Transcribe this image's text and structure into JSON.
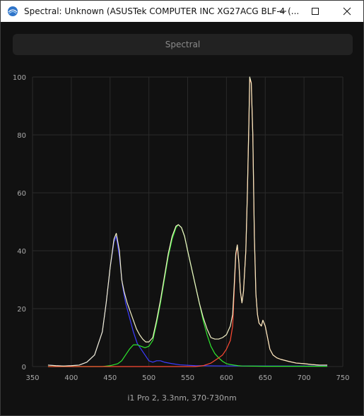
{
  "window": {
    "title": "Spectral: Unknown (ASUSTek COMPUTER INC XG27ACG BLF-4 (...",
    "controls": {
      "minimize_icon": "minimize-icon",
      "maximize_icon": "maximize-icon",
      "close_icon": "close-icon"
    }
  },
  "mode_button": {
    "label": "Spectral"
  },
  "footer": {
    "caption": "i1 Pro 2, 3.3nm, 370-730nm"
  },
  "colors": {
    "background": "#111111",
    "grid": "#2a2a2a",
    "white_curve": "#f3f0c7",
    "blue_curve": "#3c3cff",
    "green_curve": "#2ee82e",
    "red_curve": "#ff4a33"
  },
  "chart_data": {
    "type": "line",
    "xlim": [
      350,
      750
    ],
    "ylim": [
      0,
      100
    ],
    "x_ticks": [
      350,
      400,
      450,
      500,
      550,
      600,
      650,
      700,
      750
    ],
    "y_ticks": [
      0,
      20,
      40,
      60,
      80,
      100
    ],
    "grid": true,
    "legend": "none",
    "series": [
      {
        "color": "#3c3cff",
        "points": [
          [
            370,
            0.5
          ],
          [
            380,
            0.3
          ],
          [
            390,
            0.2
          ],
          [
            400,
            0.3
          ],
          [
            410,
            0.5
          ],
          [
            420,
            1.5
          ],
          [
            430,
            4
          ],
          [
            440,
            12
          ],
          [
            445,
            22
          ],
          [
            450,
            34
          ],
          [
            455,
            43
          ],
          [
            458,
            45
          ],
          [
            462,
            38
          ],
          [
            466,
            28
          ],
          [
            470,
            22
          ],
          [
            475,
            17
          ],
          [
            480,
            12
          ],
          [
            485,
            8
          ],
          [
            490,
            6
          ],
          [
            495,
            4
          ],
          [
            500,
            2
          ],
          [
            505,
            1.5
          ],
          [
            510,
            2
          ],
          [
            515,
            2
          ],
          [
            520,
            1.5
          ],
          [
            530,
            1
          ],
          [
            540,
            0.6
          ],
          [
            560,
            0.3
          ],
          [
            600,
            0.2
          ],
          [
            650,
            0.2
          ],
          [
            700,
            0.2
          ],
          [
            730,
            0.2
          ]
        ]
      },
      {
        "color": "#2ee82e",
        "points": [
          [
            370,
            0
          ],
          [
            440,
            0
          ],
          [
            450,
            0.3
          ],
          [
            460,
            1
          ],
          [
            465,
            2
          ],
          [
            470,
            4
          ],
          [
            475,
            6
          ],
          [
            480,
            7.5
          ],
          [
            485,
            7.5
          ],
          [
            490,
            7
          ],
          [
            495,
            6.5
          ],
          [
            500,
            7
          ],
          [
            505,
            9
          ],
          [
            510,
            15
          ],
          [
            515,
            22
          ],
          [
            520,
            30
          ],
          [
            525,
            38
          ],
          [
            530,
            44
          ],
          [
            535,
            48
          ],
          [
            538,
            49
          ],
          [
            542,
            48
          ],
          [
            546,
            45
          ],
          [
            550,
            40
          ],
          [
            555,
            34
          ],
          [
            560,
            28
          ],
          [
            565,
            22
          ],
          [
            570,
            16
          ],
          [
            575,
            11
          ],
          [
            580,
            7
          ],
          [
            585,
            4.5
          ],
          [
            590,
            3
          ],
          [
            595,
            1.8
          ],
          [
            600,
            1
          ],
          [
            605,
            0.7
          ],
          [
            610,
            0.5
          ],
          [
            615,
            0.3
          ],
          [
            620,
            0.2
          ],
          [
            650,
            0.1
          ],
          [
            700,
            0.1
          ],
          [
            730,
            0.1
          ]
        ]
      },
      {
        "color": "#ff4a33",
        "points": [
          [
            370,
            0
          ],
          [
            560,
            0
          ],
          [
            570,
            0.3
          ],
          [
            580,
            1.2
          ],
          [
            590,
            3
          ],
          [
            595,
            4
          ],
          [
            600,
            6
          ],
          [
            605,
            9
          ],
          [
            608,
            14
          ],
          [
            610,
            26
          ],
          [
            612,
            38
          ],
          [
            614,
            42
          ],
          [
            616,
            36
          ],
          [
            618,
            26
          ],
          [
            620,
            22
          ],
          [
            622,
            26
          ],
          [
            625,
            40
          ],
          [
            627,
            60
          ],
          [
            629,
            85
          ],
          [
            630,
            99
          ],
          [
            632,
            98
          ],
          [
            634,
            80
          ],
          [
            636,
            45
          ],
          [
            638,
            25
          ],
          [
            640,
            18
          ],
          [
            642,
            15
          ],
          [
            645,
            14
          ],
          [
            647,
            16
          ],
          [
            650,
            14
          ],
          [
            653,
            10
          ],
          [
            656,
            6
          ],
          [
            660,
            4
          ],
          [
            665,
            3
          ],
          [
            670,
            2.5
          ],
          [
            680,
            1.8
          ],
          [
            690,
            1.2
          ],
          [
            700,
            1
          ],
          [
            710,
            0.7
          ],
          [
            720,
            0.5
          ],
          [
            730,
            0.5
          ]
        ]
      },
      {
        "color": "#f3f0c7",
        "points": [
          [
            370,
            0.5
          ],
          [
            380,
            0.3
          ],
          [
            390,
            0.2
          ],
          [
            400,
            0.3
          ],
          [
            410,
            0.5
          ],
          [
            420,
            1.5
          ],
          [
            430,
            4
          ],
          [
            440,
            12
          ],
          [
            445,
            22
          ],
          [
            450,
            34
          ],
          [
            455,
            44
          ],
          [
            458,
            46
          ],
          [
            462,
            40
          ],
          [
            465,
            30
          ],
          [
            468,
            26
          ],
          [
            472,
            22
          ],
          [
            476,
            19
          ],
          [
            480,
            16
          ],
          [
            484,
            13
          ],
          [
            488,
            11
          ],
          [
            492,
            9.5
          ],
          [
            496,
            8.5
          ],
          [
            500,
            8.5
          ],
          [
            505,
            10
          ],
          [
            510,
            16
          ],
          [
            515,
            23
          ],
          [
            520,
            31
          ],
          [
            525,
            39
          ],
          [
            530,
            45
          ],
          [
            535,
            48.5
          ],
          [
            538,
            49
          ],
          [
            542,
            48
          ],
          [
            546,
            45
          ],
          [
            550,
            40
          ],
          [
            555,
            34
          ],
          [
            560,
            28
          ],
          [
            565,
            22
          ],
          [
            570,
            17
          ],
          [
            575,
            13
          ],
          [
            580,
            10
          ],
          [
            585,
            9.5
          ],
          [
            590,
            9.5
          ],
          [
            595,
            10
          ],
          [
            600,
            11
          ],
          [
            605,
            14
          ],
          [
            608,
            18
          ],
          [
            610,
            28
          ],
          [
            612,
            39
          ],
          [
            614,
            42
          ],
          [
            616,
            36
          ],
          [
            618,
            26
          ],
          [
            620,
            22
          ],
          [
            622,
            26
          ],
          [
            625,
            40
          ],
          [
            627,
            60
          ],
          [
            629,
            85
          ],
          [
            630,
            100
          ],
          [
            632,
            98
          ],
          [
            634,
            80
          ],
          [
            636,
            45
          ],
          [
            638,
            25
          ],
          [
            640,
            18
          ],
          [
            642,
            15
          ],
          [
            645,
            14
          ],
          [
            647,
            16
          ],
          [
            650,
            14
          ],
          [
            653,
            10
          ],
          [
            656,
            6
          ],
          [
            660,
            4
          ],
          [
            665,
            3
          ],
          [
            670,
            2.5
          ],
          [
            680,
            1.8
          ],
          [
            690,
            1.2
          ],
          [
            700,
            1
          ],
          [
            710,
            0.7
          ],
          [
            720,
            0.5
          ],
          [
            730,
            0.5
          ]
        ]
      }
    ]
  }
}
